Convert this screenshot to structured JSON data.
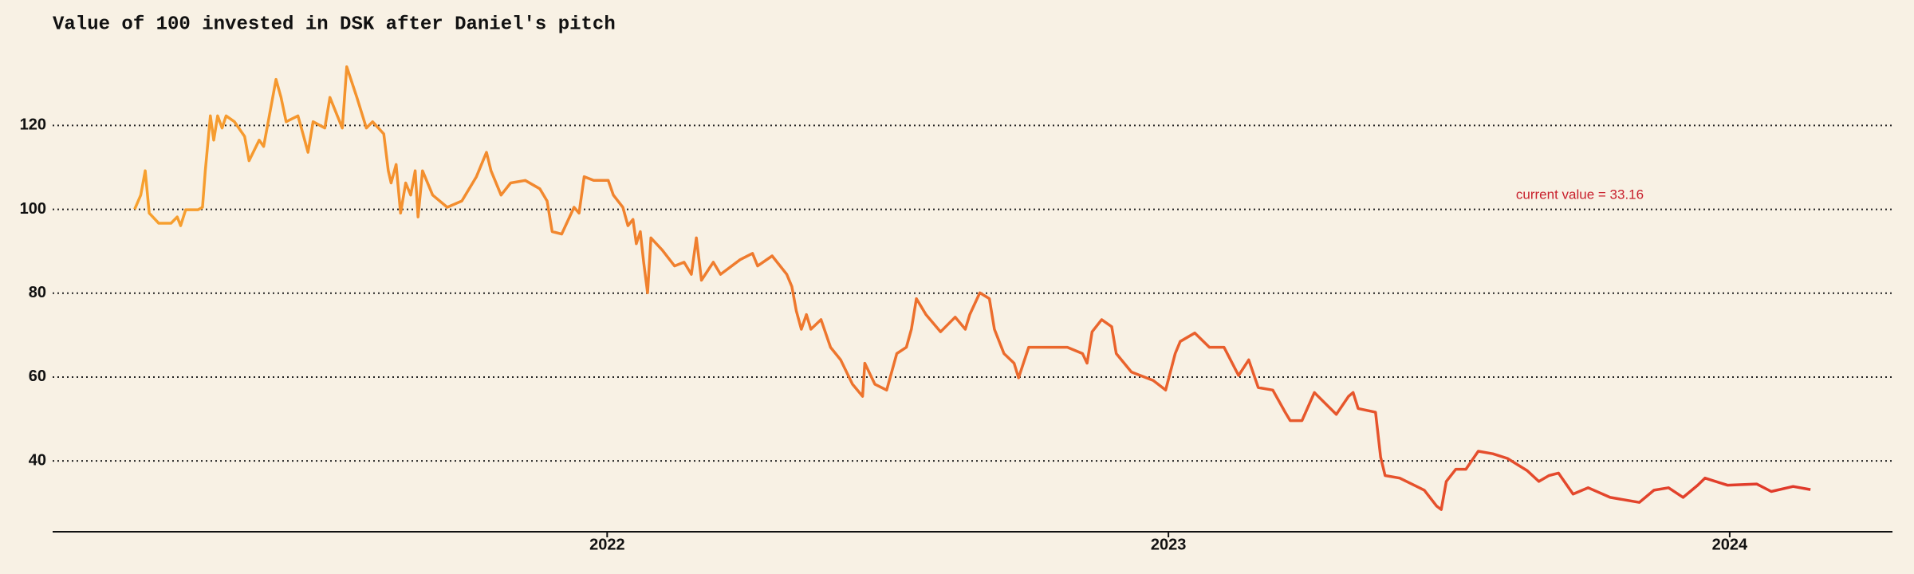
{
  "chart_data": {
    "type": "line",
    "title": "Value of 100 invested in DSK after Daniel's pitch",
    "annotation": "current value = 33.16",
    "colors": [
      "#f7a12f",
      "#e0392b"
    ],
    "annotation_color": "#c8202c",
    "grid": true,
    "xlim": [
      2021.012,
      2024.29
    ],
    "xticks": [
      2022,
      2023,
      2024
    ],
    "ylim": [
      23.1,
      141
    ],
    "yticks": [
      40,
      60,
      80,
      100,
      120
    ],
    "x": [
      2021.158,
      2021.169,
      2021.177,
      2021.184,
      2021.201,
      2021.223,
      2021.234,
      2021.24,
      2021.249,
      2021.271,
      2021.279,
      2021.284,
      2021.293,
      2021.299,
      2021.306,
      2021.314,
      2021.321,
      2021.336,
      2021.354,
      2021.362,
      2021.38,
      2021.388,
      2021.402,
      2021.41,
      2021.419,
      2021.428,
      2021.449,
      2021.458,
      2021.467,
      2021.476,
      2021.497,
      2021.506,
      2021.528,
      2021.536,
      2021.554,
      2021.571,
      2021.582,
      2021.602,
      2021.61,
      2021.615,
      2021.624,
      2021.632,
      2021.641,
      2021.65,
      2021.658,
      2021.663,
      2021.671,
      2021.689,
      2021.715,
      2021.741,
      2021.767,
      2021.785,
      2021.793,
      2021.811,
      2021.828,
      2021.854,
      2021.88,
      2021.893,
      2021.902,
      2021.919,
      2021.941,
      2021.95,
      2021.959,
      2021.976,
      2022.002,
      2022.011,
      2022.028,
      2022.037,
      2022.046,
      2022.052,
      2022.059,
      2022.065,
      2022.072,
      2022.078,
      2022.098,
      2022.12,
      2022.137,
      2022.15,
      2022.159,
      2022.168,
      2022.189,
      2022.202,
      2022.237,
      2022.259,
      2022.268,
      2022.294,
      2022.32,
      2022.329,
      2022.337,
      2022.346,
      2022.355,
      2022.363,
      2022.381,
      2022.398,
      2022.416,
      2022.437,
      2022.455,
      2022.459,
      2022.477,
      2022.498,
      2022.516,
      2022.533,
      2022.542,
      2022.551,
      2022.568,
      2022.594,
      2022.62,
      2022.638,
      2022.646,
      2022.664,
      2022.681,
      2022.69,
      2022.707,
      2022.725,
      2022.733,
      2022.751,
      2022.781,
      2022.82,
      2022.847,
      2022.855,
      2022.864,
      2022.881,
      2022.899,
      2022.907,
      2022.934,
      2022.973,
      2022.995,
      2023.012,
      2023.021,
      2023.047,
      2023.073,
      2023.099,
      2023.116,
      2023.125,
      2023.143,
      2023.16,
      2023.186,
      2023.208,
      2023.217,
      2023.238,
      2023.26,
      2023.299,
      2023.321,
      2023.329,
      2023.338,
      2023.369,
      2023.378,
      2023.386,
      2023.412,
      2023.456,
      2023.478,
      2023.486,
      2023.495,
      2023.512,
      2023.53,
      2023.552,
      2023.578,
      2023.604,
      2023.639,
      2023.66,
      2023.678,
      2023.695,
      2023.721,
      2023.748,
      2023.787,
      2023.839,
      2023.865,
      2023.891,
      2023.917,
      2023.943,
      2023.956,
      2023.996,
      2024.048,
      2024.074,
      2024.113,
      2024.144
    ],
    "values": [
      100.0,
      103.4,
      109.2,
      99.1,
      96.7,
      96.7,
      98.2,
      96.1,
      99.9,
      99.9,
      100.5,
      109.2,
      122.3,
      116.5,
      122.3,
      119.4,
      122.3,
      120.9,
      117.4,
      111.6,
      116.5,
      115.0,
      125.2,
      131.0,
      126.7,
      120.9,
      122.3,
      118.0,
      113.6,
      120.9,
      119.4,
      126.7,
      119.4,
      134.0,
      126.7,
      119.4,
      120.9,
      118.0,
      109.2,
      106.3,
      110.7,
      99.1,
      106.3,
      103.4,
      109.2,
      98.2,
      109.2,
      103.4,
      100.5,
      102.0,
      107.8,
      113.6,
      109.2,
      103.4,
      106.3,
      106.9,
      104.9,
      102.0,
      94.7,
      94.1,
      100.5,
      99.1,
      107.8,
      106.9,
      106.9,
      103.4,
      100.5,
      96.1,
      97.6,
      91.8,
      94.7,
      87.4,
      80.1,
      93.2,
      90.3,
      86.5,
      87.4,
      84.5,
      93.2,
      83.1,
      87.4,
      84.5,
      88.0,
      89.5,
      86.5,
      88.9,
      84.5,
      81.6,
      75.8,
      71.4,
      74.9,
      71.4,
      73.7,
      67.1,
      64.1,
      58.3,
      55.4,
      63.3,
      58.3,
      56.9,
      65.6,
      67.1,
      71.4,
      78.7,
      74.9,
      70.8,
      74.3,
      71.4,
      74.9,
      80.1,
      78.7,
      71.4,
      65.6,
      63.3,
      59.8,
      67.1,
      67.1,
      67.1,
      65.6,
      63.3,
      70.8,
      73.7,
      72.0,
      65.6,
      61.2,
      59.2,
      56.9,
      65.6,
      68.5,
      70.5,
      67.1,
      67.1,
      62.7,
      60.4,
      64.1,
      57.5,
      56.9,
      51.6,
      49.6,
      49.6,
      56.3,
      51.1,
      55.4,
      56.3,
      52.5,
      51.6,
      40.9,
      36.5,
      35.9,
      33.0,
      29.2,
      28.4,
      35.1,
      38.0,
      38.0,
      42.3,
      41.7,
      40.6,
      37.7,
      35.1,
      36.5,
      37.1,
      32.1,
      33.6,
      31.3,
      30.1,
      33.0,
      33.6,
      31.3,
      34.2,
      35.9,
      34.2,
      34.5,
      32.7,
      33.9,
      33.16
    ]
  }
}
